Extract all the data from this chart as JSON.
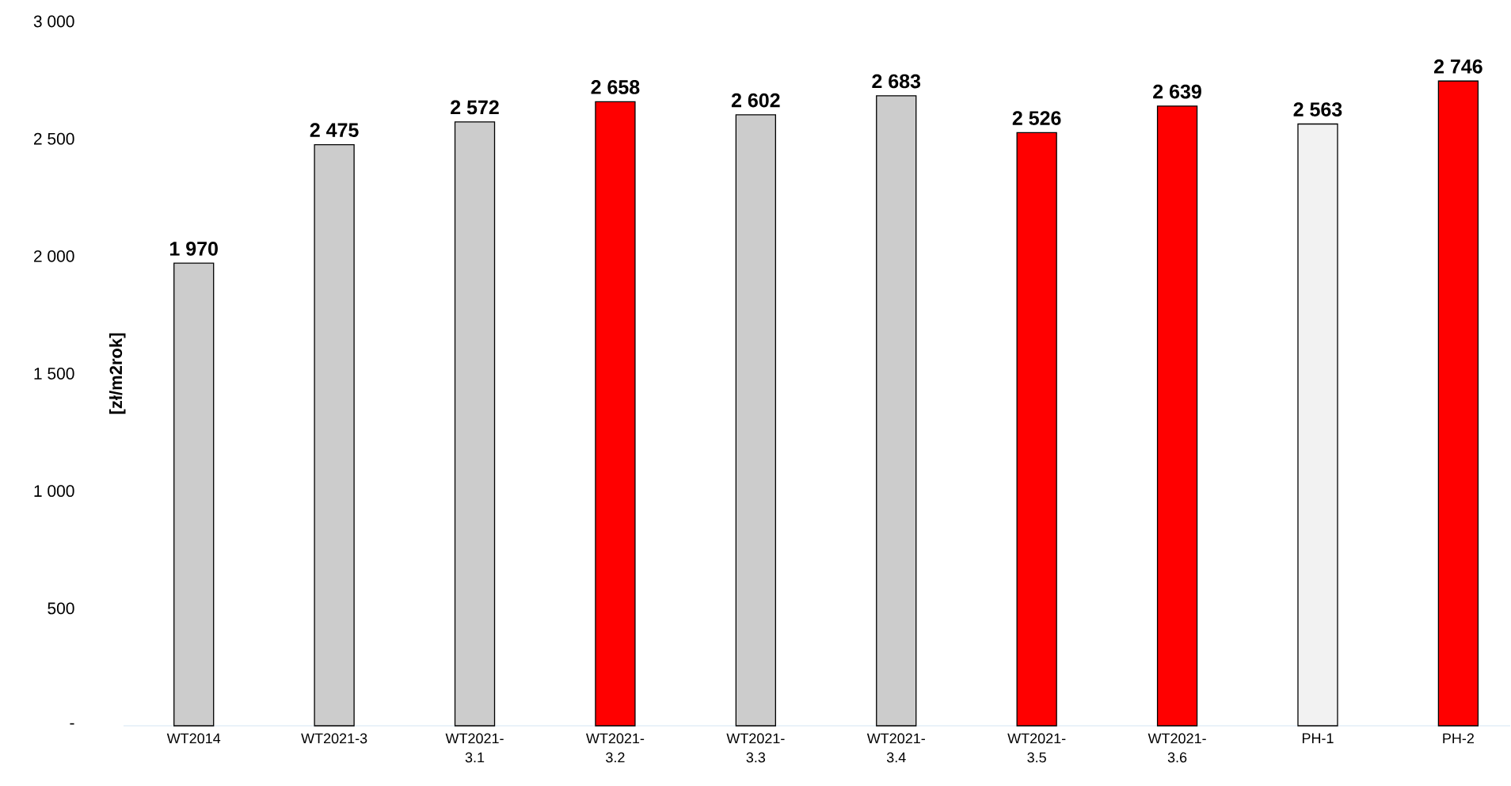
{
  "chart_data": {
    "type": "bar",
    "ylabel": "[zł/m2rok]",
    "categories": [
      "WT2014",
      "WT2021-3",
      "WT2021-3.1",
      "WT2021-3.2",
      "WT2021-3.3",
      "WT2021-3.4",
      "WT2021-3.5",
      "WT2021-3.6",
      "PH-1",
      "PH-2"
    ],
    "values": [
      1970,
      2475,
      2572,
      2658,
      2602,
      2683,
      2526,
      2639,
      2563,
      2746
    ],
    "value_labels": [
      "1 970",
      "2 475",
      "2 572",
      "2 658",
      "2 602",
      "2 683",
      "2 526",
      "2 639",
      "2 563",
      "2 746"
    ],
    "colors": [
      "#cccccc",
      "#cccccc",
      "#cccccc",
      "#ff0000",
      "#cccccc",
      "#cccccc",
      "#ff0000",
      "#ff0000",
      "#f2f2f2",
      "#ff0000"
    ],
    "ylim": [
      0,
      3000
    ],
    "yticks": [
      {
        "value": 0,
        "label": "-"
      },
      {
        "value": 500,
        "label": "500"
      },
      {
        "value": 1000,
        "label": "1 000"
      },
      {
        "value": 1500,
        "label": "1 500"
      },
      {
        "value": 2000,
        "label": "2 000"
      },
      {
        "value": 2500,
        "label": "2 500"
      },
      {
        "value": 3000,
        "label": "3 000"
      }
    ]
  }
}
